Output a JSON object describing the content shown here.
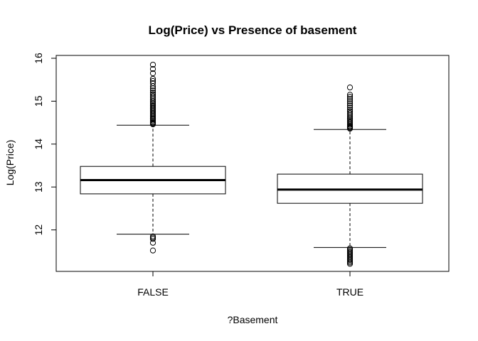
{
  "chart_data": {
    "type": "boxplot",
    "title": "Log(Price) vs Presence of basement",
    "xlabel": "?Basement",
    "ylabel": "Log(Price)",
    "ylim": [
      11.05,
      16.05
    ],
    "yticks": [
      12,
      13,
      14,
      15,
      16
    ],
    "categories": [
      "FALSE",
      "TRUE"
    ],
    "grid": false,
    "legend": "none",
    "boxes": [
      {
        "category": "FALSE",
        "whisker_low": 11.9,
        "q1": 12.84,
        "median": 13.16,
        "q3": 13.48,
        "whisker_high": 14.44,
        "outliers_high": [
          14.46,
          14.48,
          14.5,
          14.52,
          14.55,
          14.58,
          14.6,
          14.63,
          14.66,
          14.69,
          14.72,
          14.75,
          14.78,
          14.81,
          14.84,
          14.87,
          14.9,
          14.93,
          14.96,
          15.0,
          15.04,
          15.08,
          15.12,
          15.16,
          15.2,
          15.25,
          15.3,
          15.35,
          15.42,
          15.47,
          15.52,
          15.65,
          15.75,
          15.85
        ],
        "outliers_low": [
          11.85,
          11.82,
          11.79,
          11.7,
          11.52
        ]
      },
      {
        "category": "TRUE",
        "whisker_low": 11.59,
        "q1": 12.62,
        "median": 12.94,
        "q3": 13.3,
        "whisker_high": 14.34,
        "outliers_high": [
          14.36,
          14.38,
          14.4,
          14.42,
          14.45,
          14.48,
          14.51,
          14.54,
          14.57,
          14.6,
          14.64,
          14.68,
          14.72,
          14.76,
          14.8,
          14.85,
          14.9,
          14.95,
          15.0,
          15.05,
          15.1,
          15.15,
          15.32
        ],
        "outliers_low": [
          11.57,
          11.54,
          11.51,
          11.48,
          11.45,
          11.42,
          11.39,
          11.36,
          11.33,
          11.3,
          11.27,
          11.24,
          11.21
        ]
      }
    ]
  }
}
